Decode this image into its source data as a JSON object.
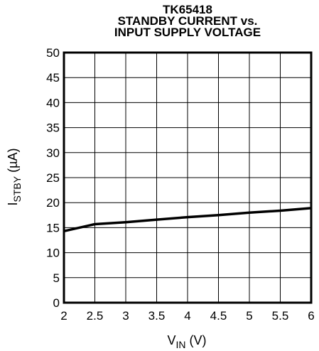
{
  "chart_data": {
    "type": "line",
    "title_lines": [
      "TK65418",
      "STANDBY CURRENT vs.",
      "INPUT SUPPLY VOLTAGE"
    ],
    "xlabel": {
      "main": "V",
      "sub": "IN",
      "unit": " (V)"
    },
    "ylabel": {
      "main": "I",
      "sub": "STBY",
      "unit": " (µA)"
    },
    "xlim": [
      2,
      6
    ],
    "ylim": [
      0,
      50
    ],
    "xticks": [
      "2",
      "2.5",
      "3",
      "3.5",
      "4",
      "4.5",
      "5",
      "5.5",
      "6"
    ],
    "yticks": [
      "0",
      "5",
      "10",
      "15",
      "20",
      "25",
      "30",
      "35",
      "40",
      "45",
      "50"
    ],
    "grid": true,
    "series": [
      {
        "x": [
          2.0,
          2.5,
          3.0,
          3.5,
          4.0,
          4.5,
          5.0,
          5.5,
          6.0
        ],
        "y": [
          14.3,
          15.7,
          16.1,
          16.6,
          17.1,
          17.5,
          18.0,
          18.4,
          18.9
        ]
      }
    ],
    "colors": {
      "line": "#000000",
      "grid": "#000000"
    }
  }
}
